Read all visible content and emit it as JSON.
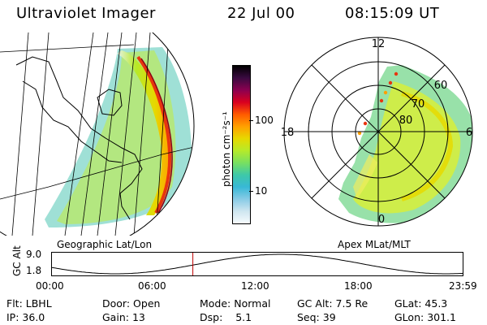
{
  "header": {
    "title": "Ultraviolet Imager",
    "date": "22 Jul 00",
    "time": "08:15:09 UT"
  },
  "geo_panel": {
    "label": "Geographic Lat/Lon"
  },
  "apex_panel": {
    "label": "Apex MLat/MLT",
    "mlt_labels": [
      "12",
      "18",
      "6",
      "0"
    ],
    "lat_labels": [
      "60",
      "70",
      "80"
    ]
  },
  "colorbar": {
    "unit_label": "photon cm⁻²s⁻¹",
    "ticks": [
      "100",
      "10"
    ],
    "colors": [
      "#000000",
      "#3a0a40",
      "#8b0050",
      "#d9001f",
      "#ff5a00",
      "#ffa000",
      "#e6d900",
      "#b6ea2a",
      "#78e060",
      "#3ec8a8",
      "#38b8d6",
      "#88cbe6",
      "#cfe6f0",
      "#f6fbfd"
    ]
  },
  "altitude_plot": {
    "ylabel": "GC Alt",
    "yticks": [
      "9.0",
      "1.8"
    ],
    "xticks": [
      "00:00",
      "06:00",
      "12:00",
      "18:00",
      "23:59"
    ],
    "current_hour": 8.25
  },
  "status": {
    "filter": {
      "label": "Flt:",
      "value": "LBHL"
    },
    "door": {
      "label": "Door:",
      "value": "Open"
    },
    "mode": {
      "label": "Mode:",
      "value": "Normal"
    },
    "gc_alt": {
      "label": "GC Alt:",
      "value": "7.5 Re"
    },
    "glat": {
      "label": "GLat:",
      "value": "45.3"
    },
    "ip": {
      "label": "IP:",
      "value": "36.0"
    },
    "gain": {
      "label": "Gain:",
      "value": "13"
    },
    "dsp": {
      "label": "Dsp:",
      "value": "5.1"
    },
    "seq": {
      "label": "Seq:",
      "value": "39"
    },
    "glon": {
      "label": "GLon:",
      "value": "301.1"
    }
  }
}
